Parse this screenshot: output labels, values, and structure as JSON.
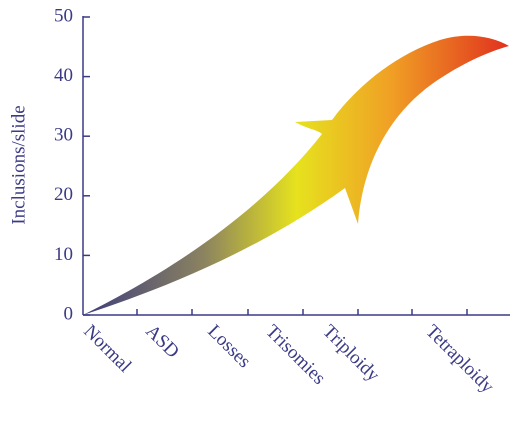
{
  "chart_data": {
    "type": "arrow",
    "y_label": "Inclusions/slide",
    "categories": [
      "Normal",
      "ASD",
      "Losses",
      "Trisomies",
      "Triploidy",
      "Tetraploidy"
    ],
    "ylim": [
      0,
      50
    ],
    "yticks": [
      0,
      10,
      20,
      30,
      40,
      50
    ]
  }
}
